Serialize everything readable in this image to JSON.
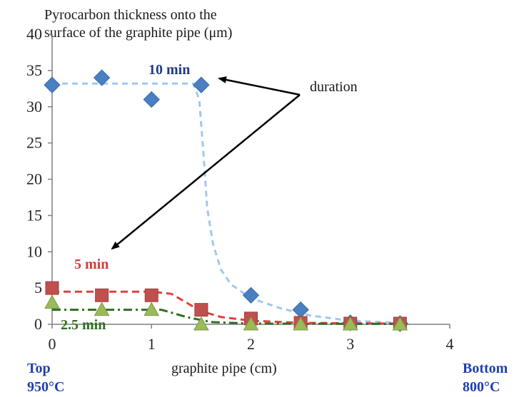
{
  "chart_data": {
    "type": "scatter",
    "ylabel_lines": [
      "Pyrocarbon thickness onto the",
      "surface of the graphite pipe (μm)"
    ],
    "xlabel": "graphite pipe (cm)",
    "x_ticks": [
      "0",
      "1",
      "2",
      "3",
      "4"
    ],
    "y_ticks": [
      "0",
      "5",
      "10",
      "15",
      "20",
      "25",
      "30",
      "35",
      "40"
    ],
    "xlim": [
      0,
      4
    ],
    "ylim": [
      0,
      40
    ],
    "grid": false,
    "series": [
      {
        "name": "10 min",
        "marker": "diamond",
        "color": "#4a7fc1",
        "trend_color": "#9ec8ef",
        "label_color": "#1f3a93",
        "points": [
          [
            0,
            33
          ],
          [
            0.5,
            34
          ],
          [
            1,
            31
          ],
          [
            1.5,
            33
          ],
          [
            2,
            4
          ],
          [
            2.5,
            2
          ],
          [
            3,
            0.2
          ],
          [
            3.5,
            0.1
          ]
        ],
        "trend": [
          [
            0,
            33.2
          ],
          [
            1.42,
            33.2
          ],
          [
            1.48,
            31
          ],
          [
            1.52,
            24
          ],
          [
            1.56,
            16
          ],
          [
            1.62,
            11
          ],
          [
            1.7,
            7.5
          ],
          [
            1.8,
            5.5
          ],
          [
            2,
            3.6
          ],
          [
            2.3,
            2.2
          ],
          [
            2.6,
            1.2
          ],
          [
            3,
            0.5
          ],
          [
            3.5,
            0.2
          ]
        ]
      },
      {
        "name": "5 min",
        "marker": "square",
        "color": "#c0504d",
        "trend_color": "#e04040",
        "label_color": "#d23c3c",
        "points": [
          [
            0,
            5
          ],
          [
            0.5,
            4
          ],
          [
            1,
            4
          ],
          [
            1.5,
            2
          ],
          [
            2,
            0.8
          ],
          [
            2.5,
            0.2
          ],
          [
            3,
            0.1
          ],
          [
            3.5,
            0.1
          ]
        ],
        "trend": [
          [
            0,
            4.5
          ],
          [
            1,
            4.5
          ],
          [
            1.2,
            4.2
          ],
          [
            1.35,
            3.0
          ],
          [
            1.5,
            1.8
          ],
          [
            1.7,
            1.0
          ],
          [
            2,
            0.5
          ],
          [
            2.5,
            0.2
          ],
          [
            3.5,
            0.1
          ]
        ]
      },
      {
        "name": "2.5 min",
        "marker": "triangle",
        "color": "#9bbb59",
        "trend_color": "#2f6e1f",
        "label_color": "#2f6e1f",
        "points": [
          [
            0,
            3
          ],
          [
            0.5,
            2
          ],
          [
            1,
            2
          ],
          [
            1.5,
            0
          ],
          [
            2,
            0
          ],
          [
            2.5,
            0
          ],
          [
            3,
            0
          ],
          [
            3.5,
            0
          ]
        ],
        "trend": [
          [
            0,
            2.0
          ],
          [
            1.1,
            2.0
          ],
          [
            1.35,
            1.0
          ],
          [
            1.6,
            0.3
          ],
          [
            2,
            0.1
          ],
          [
            3.5,
            0.05
          ]
        ]
      }
    ],
    "annotation": "duration",
    "left_corner_label": [
      "Top",
      "950°C"
    ],
    "right_corner_label": [
      "Bottom",
      "800°C"
    ]
  }
}
